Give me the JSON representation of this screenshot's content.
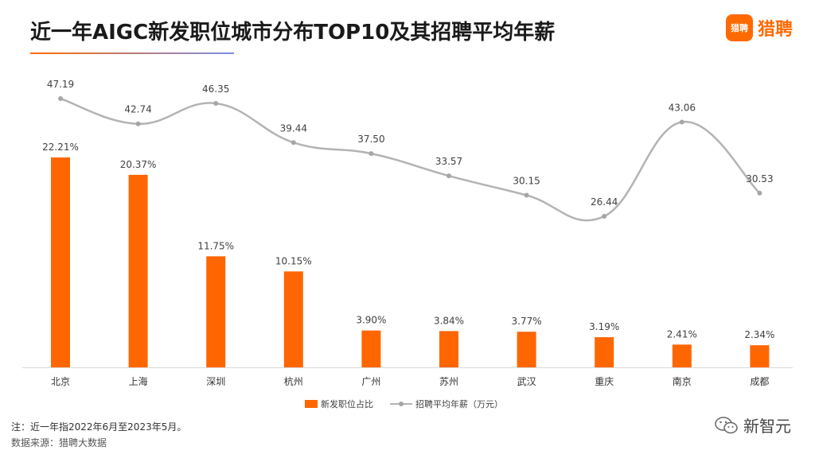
{
  "header": {
    "title": "近一年AIGC新发职位城市分布TOP10及其招聘平均年薪",
    "brand_logo_text": "猎聘",
    "brand_name": "猎聘"
  },
  "footer": {
    "note": "注：近一年指2022年6月至2023年5月。",
    "source": "数据来源：猎聘大数据"
  },
  "watermark": {
    "text": "新智元"
  },
  "colors": {
    "bar": "#ff6600",
    "line": "#b3b3b3",
    "accent": "#ff6a00"
  },
  "chart_data": {
    "type": "bar",
    "title": "近一年AIGC新发职位城市分布TOP10及其招聘平均年薪",
    "categories": [
      "北京",
      "上海",
      "深圳",
      "杭州",
      "广州",
      "苏州",
      "武汉",
      "重庆",
      "南京",
      "成都"
    ],
    "series": [
      {
        "name": "新发职位占比",
        "type": "bar",
        "values": [
          22.21,
          20.37,
          11.75,
          10.15,
          3.9,
          3.84,
          3.77,
          3.19,
          2.41,
          2.34
        ],
        "labels": [
          "22.21%",
          "20.37%",
          "11.75%",
          "10.15%",
          "3.90%",
          "3.84%",
          "3.77%",
          "3.19%",
          "2.41%",
          "2.34%"
        ]
      },
      {
        "name": "招聘平均年薪（万元）",
        "type": "line",
        "smooth": true,
        "values": [
          47.19,
          42.74,
          46.35,
          39.44,
          37.5,
          33.57,
          30.15,
          26.44,
          43.06,
          30.53
        ],
        "labels": [
          "47.19",
          "42.74",
          "46.35",
          "39.44",
          "37.50",
          "33.57",
          "30.15",
          "26.44",
          "43.06",
          "30.53"
        ]
      }
    ],
    "legend": {
      "placement": "bottom-center",
      "items": [
        "新发职位占比",
        "招聘平均年薪（万元）"
      ]
    },
    "bar_ylim": [
      0,
      30
    ],
    "line_ylim": [
      10,
      50
    ],
    "grid": false
  }
}
